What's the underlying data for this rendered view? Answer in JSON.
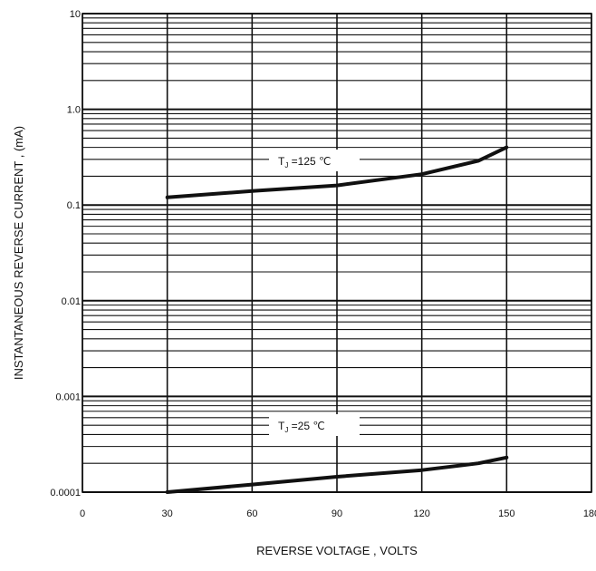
{
  "chart_data": {
    "type": "line",
    "title": "",
    "xlabel": "REVERSE VOLTAGE , VOLTS",
    "ylabel": "INSTANTANEOUS REVERSE CURRENT , (mA)",
    "xlim": [
      0,
      180
    ],
    "ylim": [
      0.0001,
      10
    ],
    "y_scale": "log",
    "grid": true,
    "x_ticks": [
      0,
      30,
      60,
      90,
      120,
      150,
      180
    ],
    "x_tick_labels": [
      "0",
      "30",
      "60",
      "90",
      "120",
      "150",
      "180"
    ],
    "y_ticks": [
      0.0001,
      0.001,
      0.01,
      0.1,
      1,
      10
    ],
    "y_tick_labels": [
      "0.0001",
      "0.001",
      "0.01",
      "0.1",
      "1.0",
      "10"
    ],
    "series": [
      {
        "label_main": "T",
        "label_sub": "J",
        "label_value": " =125 ℃",
        "color": "#111111",
        "points": [
          [
            30,
            0.12
          ],
          [
            60,
            0.14
          ],
          [
            90,
            0.16
          ],
          [
            120,
            0.21
          ],
          [
            140,
            0.29
          ],
          [
            150,
            0.4
          ]
        ]
      },
      {
        "label_main": "T",
        "label_sub": "J",
        "label_value": " =25 ℃",
        "color": "#111111",
        "points": [
          [
            30,
            0.0001
          ],
          [
            60,
            0.00012
          ],
          [
            90,
            0.000145
          ],
          [
            120,
            0.00017
          ],
          [
            140,
            0.0002
          ],
          [
            150,
            0.00023
          ]
        ]
      }
    ]
  }
}
